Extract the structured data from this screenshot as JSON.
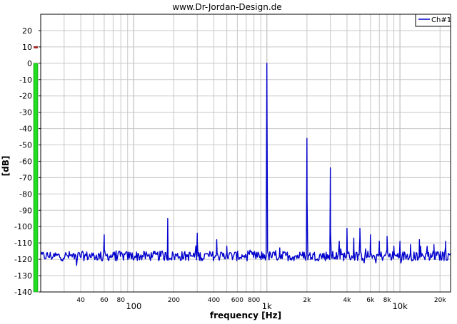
{
  "chart_data": {
    "type": "line",
    "title": "www.Dr-Jordan-Design.de",
    "xlabel": "frequency [Hz]",
    "ylabel": "[dB]",
    "x_scale": "log",
    "xlim": [
      20,
      24000
    ],
    "ylim": [
      -140,
      30
    ],
    "grid": true,
    "legend_position": "top-right",
    "y_ticks": [
      20,
      10,
      0,
      -10,
      -20,
      -30,
      -40,
      -50,
      -60,
      -70,
      -80,
      -90,
      -100,
      -110,
      -120,
      -130,
      -140
    ],
    "x_minor_ticks": [
      {
        "value": 40,
        "label": "40"
      },
      {
        "value": 60,
        "label": "60"
      },
      {
        "value": 80,
        "label": "80"
      },
      {
        "value": 200,
        "label": "200"
      },
      {
        "value": 400,
        "label": "400"
      },
      {
        "value": 600,
        "label": "600"
      },
      {
        "value": 800,
        "label": "800"
      },
      {
        "value": 2000,
        "label": "2k"
      },
      {
        "value": 4000,
        "label": "4k"
      },
      {
        "value": 6000,
        "label": "6k"
      },
      {
        "value": 8000,
        "label": "8k"
      },
      {
        "value": 20000,
        "label": "20k"
      }
    ],
    "x_major_ticks": [
      {
        "value": 100,
        "label": "100"
      },
      {
        "value": 1000,
        "label": "1k"
      },
      {
        "value": 10000,
        "label": "10k"
      }
    ],
    "series": [
      {
        "name": "Ch#1",
        "color": "#0000cc",
        "noise_floor_db": -118,
        "peaks": [
          {
            "x": 60,
            "y": -105
          },
          {
            "x": 180,
            "y": -95
          },
          {
            "x": 300,
            "y": -104
          },
          {
            "x": 420,
            "y": -108
          },
          {
            "x": 500,
            "y": -112
          },
          {
            "x": 1000,
            "y": 0
          },
          {
            "x": 1250,
            "y": -113
          },
          {
            "x": 2000,
            "y": -46
          },
          {
            "x": 3000,
            "y": -64
          },
          {
            "x": 3500,
            "y": -109
          },
          {
            "x": 4000,
            "y": -101
          },
          {
            "x": 4500,
            "y": -107
          },
          {
            "x": 5000,
            "y": -101
          },
          {
            "x": 6000,
            "y": -105
          },
          {
            "x": 7000,
            "y": -109
          },
          {
            "x": 8000,
            "y": -106
          },
          {
            "x": 9000,
            "y": -112
          },
          {
            "x": 10000,
            "y": -109
          },
          {
            "x": 12000,
            "y": -111
          },
          {
            "x": 14000,
            "y": -108
          },
          {
            "x": 16000,
            "y": -112
          },
          {
            "x": 18000,
            "y": -111
          },
          {
            "x": 22000,
            "y": -109
          }
        ]
      }
    ]
  },
  "level_meter": {
    "indicator_value_db": 10,
    "fill_top_db": 0,
    "color": "#22dd22"
  },
  "colors": {
    "background": "#ffffff",
    "grid": "#c8c8c8",
    "axis": "#000000",
    "trace": "#0000cc"
  }
}
